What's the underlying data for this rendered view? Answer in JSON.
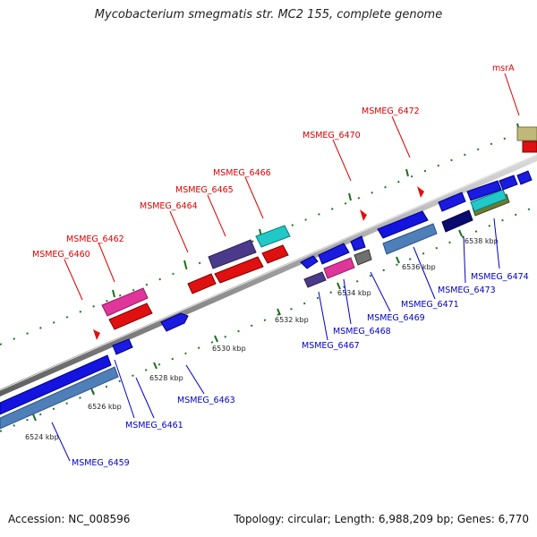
{
  "title": "Mycobacterium smegmatis str. MC2 155, complete genome",
  "footer": {
    "accession": "Accession: NC_008596",
    "topology": "Topology: circular; Length: 6,988,209 bp; Genes: 6,770"
  },
  "colors": {
    "label_top": "#dd0000",
    "label_bottom": "#0000cc",
    "backbone": "#8c8c8c",
    "ticks": "#1a6e1a"
  },
  "scale_labels": [
    "6524 kbp",
    "6526 kbp",
    "6528 kbp",
    "6530 kbp",
    "6532 kbp",
    "6534 kbp",
    "6536 kbp",
    "6538 kbp"
  ],
  "genes_top": [
    "MSMEG_6460",
    "MSMEG_6462",
    "MSMEG_6464",
    "MSMEG_6465",
    "MSMEG_6466",
    "MSMEG_6470",
    "MSMEG_6472",
    "msrA"
  ],
  "genes_bottom": [
    "MSMEG_6459",
    "MSMEG_6461",
    "MSMEG_6463",
    "MSMEG_6467",
    "MSMEG_6468",
    "MSMEG_6469",
    "MSMEG_6471",
    "MSMEG_6473",
    "MSMEG_6474"
  ]
}
